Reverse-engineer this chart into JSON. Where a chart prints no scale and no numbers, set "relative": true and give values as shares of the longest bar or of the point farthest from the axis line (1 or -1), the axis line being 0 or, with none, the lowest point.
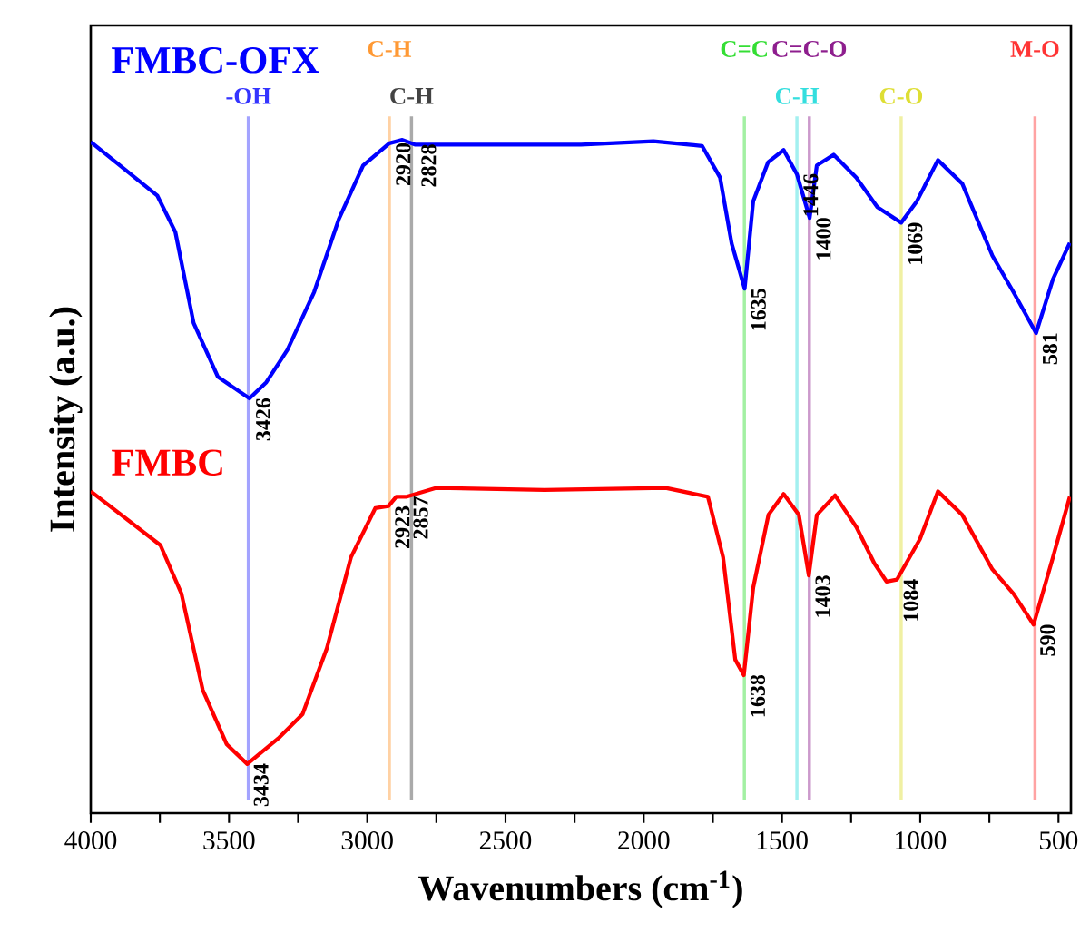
{
  "chart_data": {
    "type": "line",
    "relative": true,
    "legend": false,
    "grid": false,
    "marker": "none",
    "line_style": "solid",
    "xlabel": "Wavenumbers (cm$^{-1}$)",
    "ylabel": "Intensity (a.u.)",
    "xlim": [
      4000,
      455
    ],
    "xticks": [
      4000,
      {
        "value": 3750,
        "label": null
      },
      3500,
      {
        "value": 3250,
        "label": null
      },
      3000,
      {
        "value": 2750,
        "label": null
      },
      2500,
      {
        "value": 2250,
        "label": null
      },
      2000,
      {
        "value": 1750,
        "label": null
      },
      1500,
      {
        "value": 1250,
        "label": null
      },
      1000,
      {
        "value": 750,
        "label": null
      },
      500
    ],
    "series": [
      {
        "name": "FMBC-OFX",
        "color": "#0000ff",
        "x": [
          4000,
          3759,
          3694,
          3628,
          3540,
          3426,
          3365,
          3289,
          3192,
          3103,
          3015,
          2920,
          2873,
          2828,
          2359,
          2227,
          1965,
          1789,
          1724,
          1682,
          1635,
          1604,
          1550,
          1494,
          1446,
          1400,
          1374,
          1313,
          1231,
          1155,
          1069,
          1012,
          936,
          848,
          739,
          663,
          581,
          520,
          459
        ],
        "values": [
          0.997,
          0.917,
          0.863,
          0.728,
          0.648,
          0.616,
          0.64,
          0.688,
          0.774,
          0.882,
          0.962,
          0.995,
          1.0,
          0.993,
          0.993,
          0.993,
          0.998,
          0.991,
          0.944,
          0.846,
          0.779,
          0.909,
          0.967,
          0.985,
          0.949,
          0.884,
          0.962,
          0.978,
          0.944,
          0.9,
          0.877,
          0.909,
          0.97,
          0.935,
          0.828,
          0.774,
          0.713,
          0.793,
          0.847
        ]
      },
      {
        "name": "FMBC",
        "color": "#ff0000",
        "x": [
          4000,
          3748,
          3672,
          3595,
          3508,
          3434,
          3322,
          3234,
          3146,
          3059,
          2971,
          2923,
          2895,
          2857,
          2752,
          2359,
          1921,
          1768,
          1713,
          1669,
          1638,
          1604,
          1549,
          1494,
          1439,
          1403,
          1374,
          1308,
          1231,
          1166,
          1122,
          1084,
          1001,
          936,
          848,
          739,
          663,
          590,
          520,
          459
        ],
        "values": [
          0.478,
          0.398,
          0.326,
          0.183,
          0.102,
          0.073,
          0.111,
          0.147,
          0.245,
          0.38,
          0.453,
          0.456,
          0.47,
          0.47,
          0.483,
          0.48,
          0.483,
          0.47,
          0.38,
          0.228,
          0.205,
          0.335,
          0.443,
          0.474,
          0.443,
          0.353,
          0.443,
          0.472,
          0.425,
          0.371,
          0.344,
          0.347,
          0.407,
          0.478,
          0.443,
          0.362,
          0.326,
          0.28,
          0.38,
          0.47
        ]
      }
    ],
    "ref_lines": [
      {
        "axis": "x",
        "value": 3430,
        "label": "-OH",
        "color": "#a3a3ff"
      },
      {
        "axis": "x",
        "value": 2920,
        "label": "C-H",
        "color": "#ffd1a3"
      },
      {
        "axis": "x",
        "value": 2840,
        "label": "C-H",
        "color": "#aaaaaa"
      },
      {
        "axis": "x",
        "value": 1636,
        "label": "C=C",
        "color": "#a3f0a3"
      },
      {
        "axis": "x",
        "value": 1446,
        "label": "C-H",
        "color": "#a3f0f0"
      },
      {
        "axis": "x",
        "value": 1401,
        "label": "C=C-O",
        "color": "#cc99cc"
      },
      {
        "axis": "x",
        "value": 1069,
        "label": "C-O",
        "color": "#f0f0a3"
      },
      {
        "axis": "x",
        "value": 585,
        "label": "M-O",
        "color": "#ffa3a3"
      }
    ],
    "annotations": [
      {
        "text": "3426",
        "x": 3426,
        "y": 0.616
      },
      {
        "text": "2920",
        "x": 2920,
        "y": 0.995
      },
      {
        "text": "2828",
        "x": 2828,
        "y": 0.993
      },
      {
        "text": "1635",
        "x": 1635,
        "y": 0.779
      },
      {
        "text": "1446",
        "x": 1446,
        "y": 0.949
      },
      {
        "text": "1400",
        "x": 1400,
        "y": 0.884
      },
      {
        "text": "1069",
        "x": 1069,
        "y": 0.877
      },
      {
        "text": "581",
        "x": 581,
        "y": 0.713
      },
      {
        "text": "3434",
        "x": 3434,
        "y": 0.073
      },
      {
        "text": "2923",
        "x": 2923,
        "y": 0.456
      },
      {
        "text": "2857",
        "x": 2857,
        "y": 0.47
      },
      {
        "text": "1638",
        "x": 1638,
        "y": 0.205
      },
      {
        "text": "1403",
        "x": 1403,
        "y": 0.353
      },
      {
        "text": "1084",
        "x": 1084,
        "y": 0.347
      },
      {
        "text": "590",
        "x": 590,
        "y": 0.28
      }
    ]
  }
}
